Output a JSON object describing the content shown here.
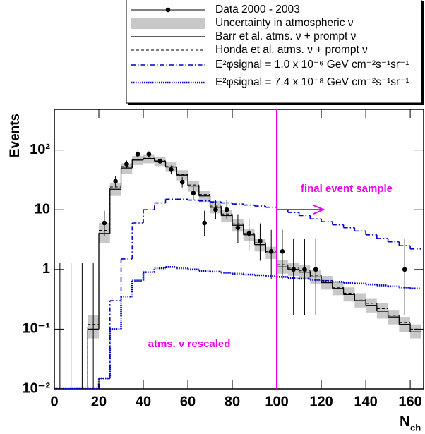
{
  "chart_data": {
    "type": "histogram",
    "x_label": {
      "base": "N",
      "subscript": "ch"
    },
    "y_label": "Events",
    "bins": [
      0,
      5,
      10,
      15,
      20,
      25,
      30,
      35,
      40,
      45,
      50,
      55,
      60,
      65,
      70,
      75,
      80,
      85,
      90,
      95,
      100,
      105,
      110,
      115,
      120,
      125,
      130,
      135,
      140,
      145,
      150,
      155,
      160,
      165
    ],
    "xlim": [
      0,
      166
    ],
    "xticks": [
      0,
      20,
      40,
      60,
      80,
      100,
      120,
      140,
      160
    ],
    "ylim": [
      0.01,
      480
    ],
    "log_y": true,
    "yticks": [
      {
        "value": 0.01,
        "label": "10⁻²"
      },
      {
        "value": 0.1,
        "label": "10⁻¹"
      },
      1,
      10,
      {
        "value": 100,
        "label": "10²"
      }
    ],
    "data": {
      "name": "Data 2000 - 2003",
      "color": "#000000",
      "x": [
        2.5,
        7.5,
        12.5,
        17.5,
        22.5,
        27.5,
        32.5,
        37.5,
        42.5,
        47.5,
        52.5,
        57.5,
        62.5,
        67.5,
        72.5,
        77.5,
        82.5,
        87.5,
        92.5,
        97.5,
        102.5,
        107.5,
        112.5,
        117.5,
        157.5
      ],
      "values": [
        0,
        0,
        0,
        0,
        6,
        30,
        58,
        85,
        85,
        65,
        47,
        29,
        19,
        6,
        10,
        10,
        5,
        4,
        3,
        2,
        2,
        1,
        1,
        1,
        1
      ],
      "error_low": [
        0,
        0,
        0,
        0,
        2.4,
        5.5,
        7.6,
        9.2,
        9.2,
        8,
        6.8,
        5.4,
        4.3,
        2.4,
        3.1,
        3.1,
        2.2,
        1.9,
        1.6,
        1.3,
        1.3,
        0.83,
        0.83,
        0.83,
        0.83
      ],
      "error_high": [
        1.29,
        1.29,
        1.29,
        1.29,
        3.6,
        6.5,
        8.7,
        10.3,
        10.3,
        9,
        7.9,
        6.4,
        5.4,
        3.6,
        4.3,
        4.3,
        3.4,
        3.2,
        2.9,
        2.6,
        2.6,
        2.3,
        2.3,
        2.3,
        2.3
      ]
    },
    "uncertainty": {
      "name": "Uncertainty in atmospheric ν",
      "color": "#c8c8c8",
      "low": [
        0.01,
        0.01,
        0.01,
        0.07,
        2.8,
        17,
        40,
        56,
        60,
        54,
        43,
        31,
        20,
        13.5,
        8.7,
        6.3,
        4.3,
        3.0,
        2.0,
        1.5,
        0.85,
        0.78,
        0.7,
        0.58,
        0.46,
        0.37,
        0.29,
        0.23,
        0.19,
        0.15,
        0.12,
        0.09,
        0.07
      ],
      "high": [
        0.01,
        0.01,
        0.01,
        0.17,
        6,
        28,
        60,
        80,
        85,
        77,
        62,
        46,
        30,
        21,
        14,
        10,
        7,
        4.8,
        3.3,
        2.4,
        1.45,
        1.3,
        1.17,
        0.98,
        0.78,
        0.63,
        0.5,
        0.4,
        0.33,
        0.27,
        0.21,
        0.16,
        0.12
      ]
    },
    "series": [
      {
        "name": "Barr et al. atms. ν + prompt ν",
        "color": "#000000",
        "dash": "solid",
        "values": [
          0.01,
          0.01,
          0.01,
          0.1,
          4,
          22,
          50,
          68,
          72,
          65,
          52,
          38,
          25,
          17,
          11,
          8,
          5.5,
          3.8,
          2.6,
          1.9,
          1.1,
          1.0,
          0.9,
          0.75,
          0.6,
          0.48,
          0.38,
          0.3,
          0.25,
          0.2,
          0.16,
          0.12,
          0.09
        ]
      },
      {
        "name": "Honda et al. atms. ν + prompt ν",
        "color": "#000000",
        "dash": "dashed",
        "values": [
          0.01,
          0.01,
          0.01,
          0.12,
          4.5,
          24,
          53,
          70,
          73,
          66,
          53,
          39,
          26,
          18,
          11.5,
          8.5,
          5.8,
          4.0,
          2.8,
          2.0,
          1.2,
          1.05,
          0.95,
          0.8,
          0.65,
          0.5,
          0.4,
          0.32,
          0.27,
          0.22,
          0.17,
          0.13,
          0.1
        ]
      },
      {
        "name": "E²φsignal = 1.0 x 10⁻⁶ GeV cm⁻²s⁻¹sr⁻¹",
        "color": "#0000cc",
        "dash": "dashdot",
        "values": [
          0.01,
          0.01,
          0.01,
          0.01,
          0.015,
          0.3,
          1.5,
          6,
          10,
          13,
          15,
          15,
          14.5,
          14,
          13.5,
          13,
          12.5,
          12,
          11.5,
          11,
          10,
          9,
          8,
          7,
          6.3,
          5.6,
          5,
          4.4,
          3.8,
          3.3,
          2.9,
          2.5,
          2.2
        ]
      },
      {
        "name": "E²φsignal = 7.4 x 10⁻⁸ GeV cm⁻²s⁻¹sr⁻¹",
        "color": "#0000cc",
        "dash": "dotted",
        "values": [
          0.01,
          0.01,
          0.01,
          0.01,
          0.015,
          0.1,
          0.35,
          0.65,
          0.9,
          1.05,
          1.1,
          1.05,
          1.0,
          0.95,
          0.92,
          0.88,
          0.85,
          0.82,
          0.8,
          0.78,
          0.75,
          0.72,
          0.7,
          0.67,
          0.64,
          0.62,
          0.6,
          0.58,
          0.56,
          0.54,
          0.52,
          0.5,
          0.48
        ]
      }
    ],
    "cut": 100,
    "annotations": [
      "final event sample",
      "atms. ν rescaled"
    ],
    "annotation_color": "#ee00ee"
  }
}
